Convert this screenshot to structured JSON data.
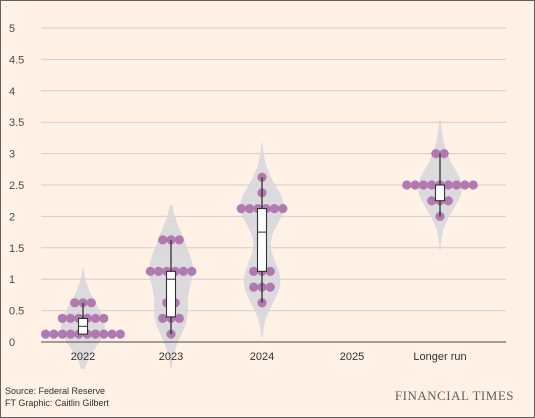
{
  "chart_data": {
    "type": "violin-dot",
    "title": "",
    "xlabel": "",
    "ylabel": "",
    "ylim": [
      0,
      5
    ],
    "yticks": [
      "0",
      "0.5",
      "1",
      "1.5",
      "2",
      "2.5",
      "3",
      "3.5",
      "4",
      "4.5",
      "5"
    ],
    "categories": [
      "2022",
      "2023",
      "2024",
      "2025",
      "Longer run"
    ],
    "grid": true,
    "colors": {
      "dot": "#b07ab0",
      "violin": "#d6d6dc",
      "box_fill": "#ffffff",
      "box_stroke": "#33302e",
      "background": "#fff1e5"
    },
    "series": [
      {
        "category": "2022",
        "values": [
          0.125,
          0.125,
          0.125,
          0.125,
          0.125,
          0.125,
          0.125,
          0.125,
          0.125,
          0.125,
          0.375,
          0.375,
          0.375,
          0.375,
          0.375,
          0.375,
          0.625,
          0.625,
          0.625
        ],
        "q1": 0.125,
        "median": 0.25,
        "q3": 0.375,
        "min": 0.125,
        "max": 0.625
      },
      {
        "category": "2023",
        "values": [
          0.125,
          0.375,
          0.375,
          0.375,
          0.625,
          0.625,
          1.125,
          1.125,
          1.125,
          1.125,
          1.125,
          1.125,
          1.625,
          1.625,
          1.625
        ],
        "q1": 0.4,
        "median": 1.0,
        "q3": 1.125,
        "min": 0.125,
        "max": 1.625
      },
      {
        "category": "2024",
        "values": [
          0.625,
          0.875,
          0.875,
          0.875,
          1.125,
          1.125,
          1.125,
          1.625,
          2.125,
          2.125,
          2.125,
          2.125,
          2.125,
          2.125,
          2.375,
          2.625
        ],
        "q1": 1.125,
        "median": 1.75,
        "q3": 2.125,
        "min": 0.625,
        "max": 2.625
      },
      {
        "category": "2025",
        "values": []
      },
      {
        "category": "Longer run",
        "values": [
          2.0,
          2.25,
          2.25,
          2.25,
          2.5,
          2.5,
          2.5,
          2.5,
          2.5,
          2.5,
          2.5,
          2.5,
          2.5,
          3.0,
          3.0
        ],
        "q1": 2.25,
        "median": 2.5,
        "q3": 2.5,
        "min": 2.0,
        "max": 3.0
      }
    ]
  },
  "footer": {
    "source": "Source: Federal Reserve",
    "credit": "FT Graphic: Caitlin Gilbert",
    "brand": "FINANCIAL TIMES"
  }
}
